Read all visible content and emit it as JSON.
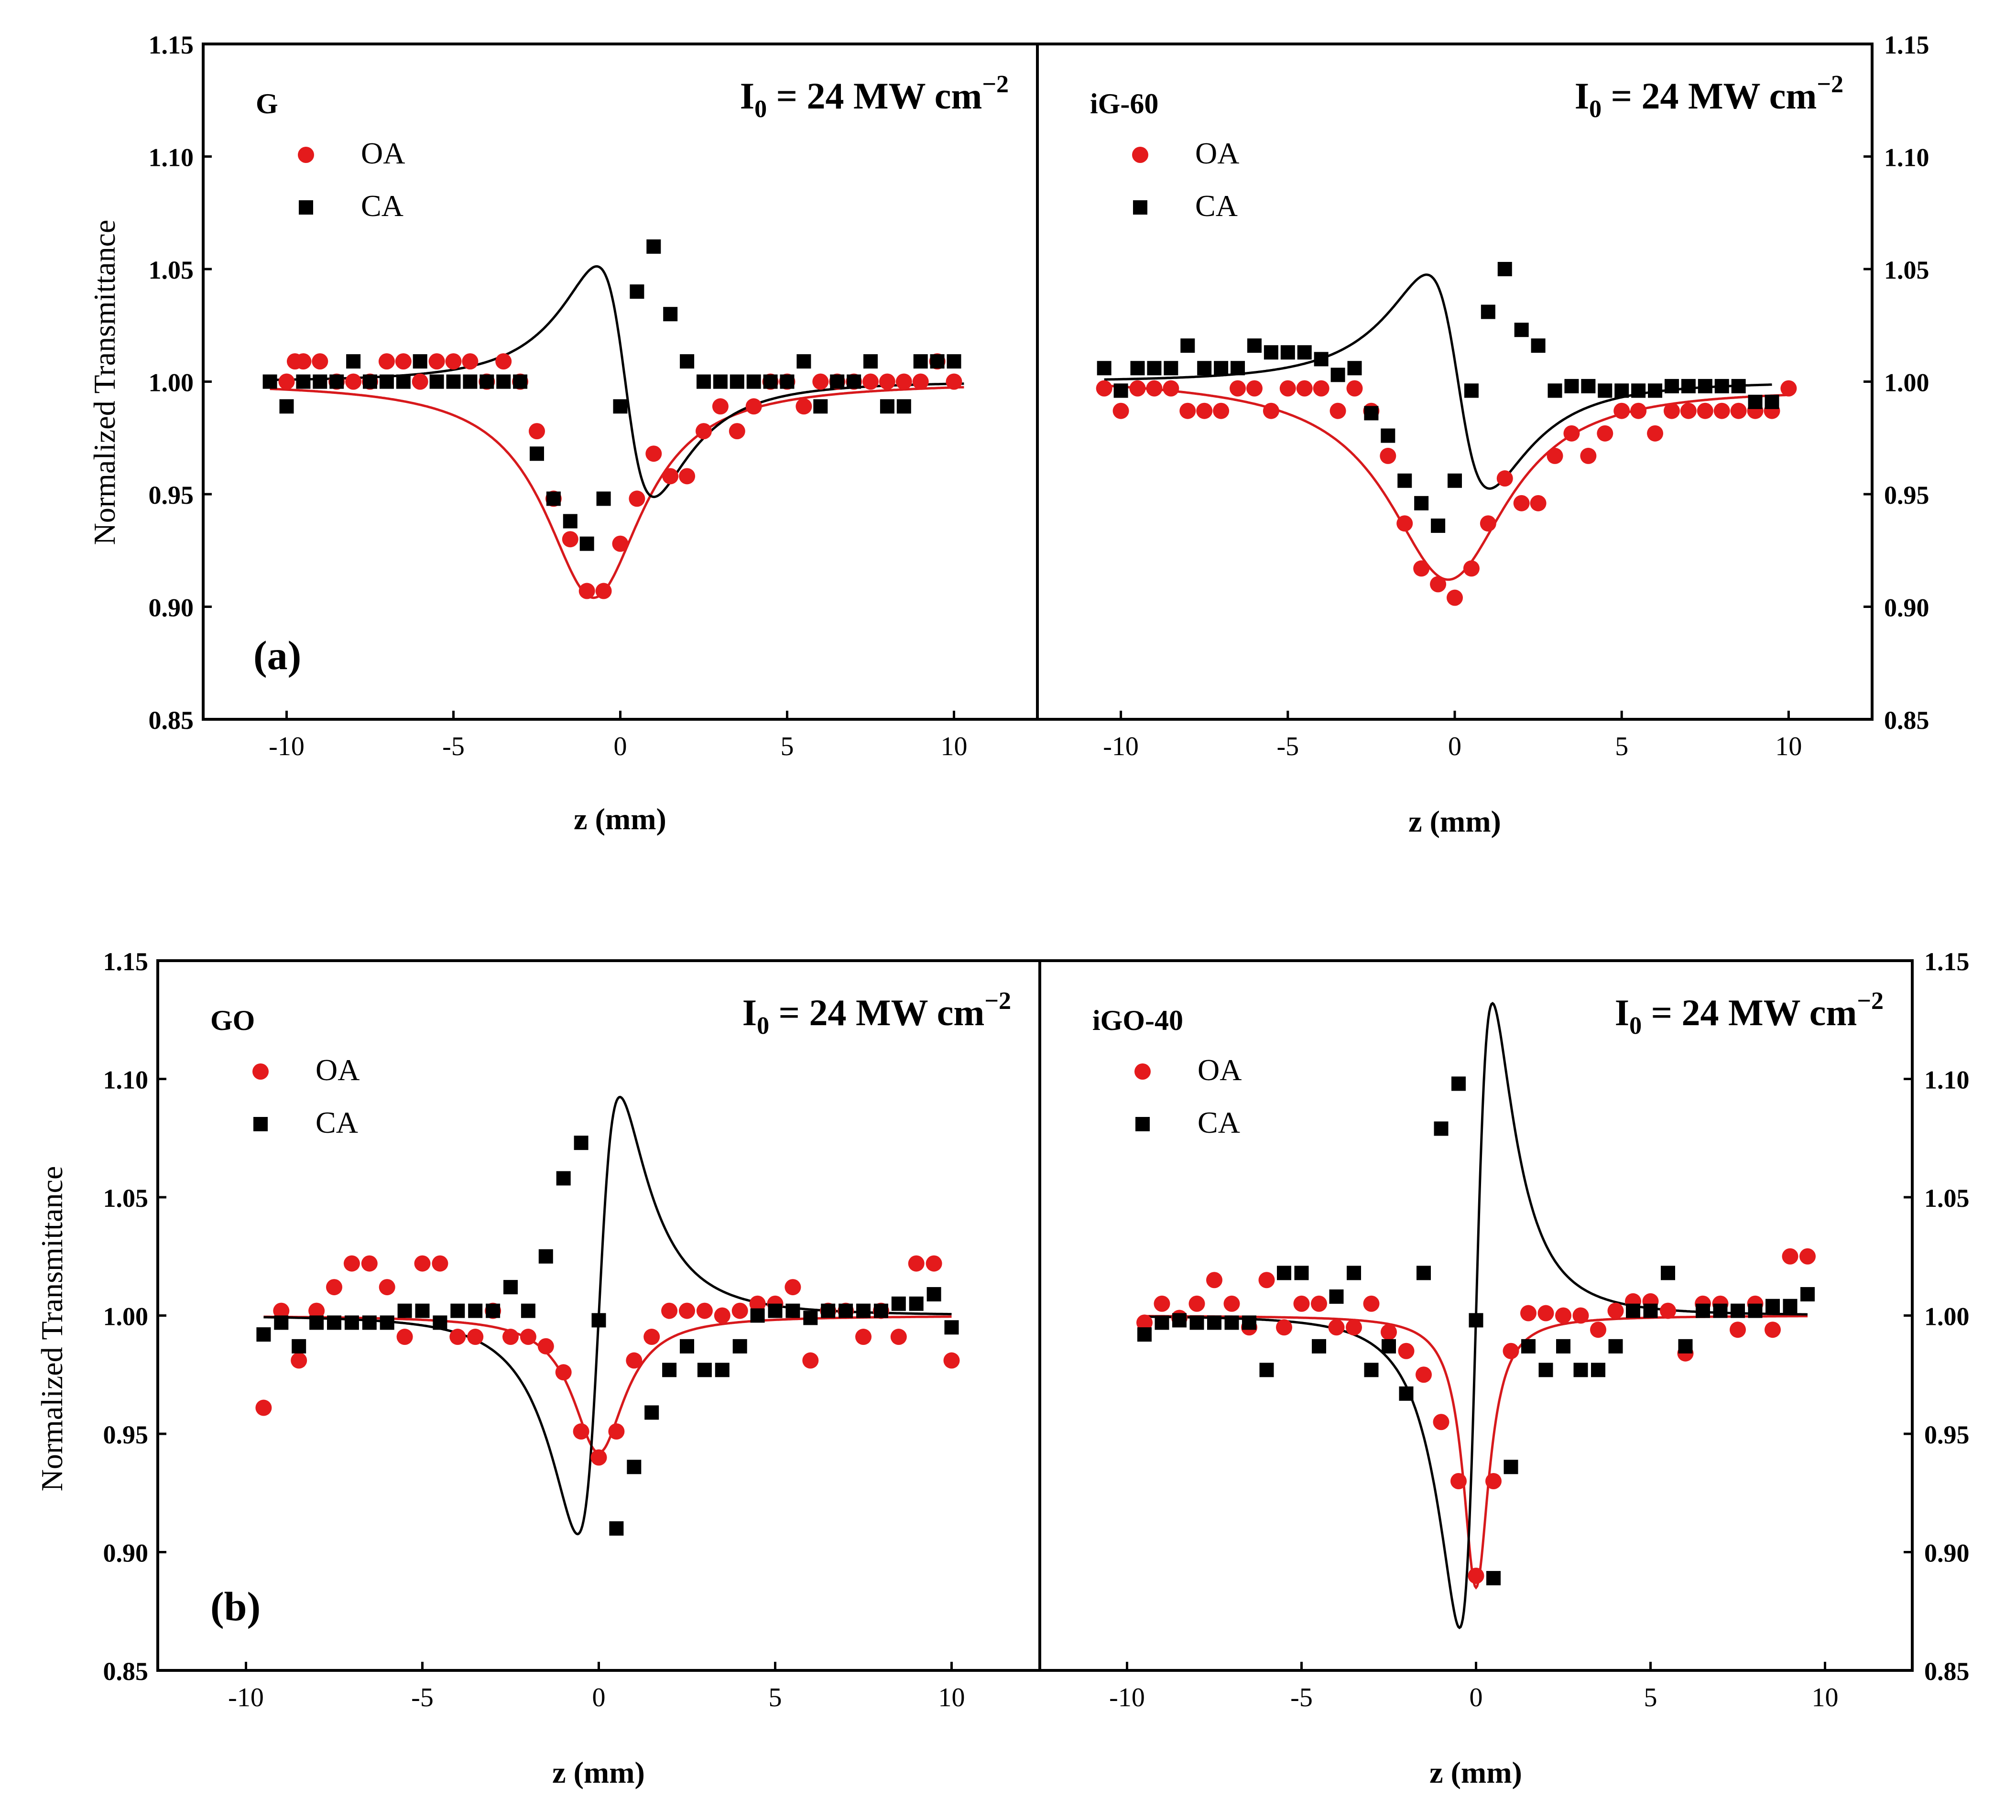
{
  "figure": {
    "rows": [
      {
        "row_label": "(a)",
        "xlabel": "z (mm)",
        "ylabel": "Normalized Transmittance"
      },
      {
        "row_label": "(b)",
        "xlabel": "z (mm)",
        "ylabel": "Normalized Transmittance"
      }
    ]
  },
  "colors": {
    "oa": "#e41a1c",
    "ca": "#000000",
    "fit_oa": "#d7191c",
    "fit_ca": "#000000"
  },
  "chart_data": [
    {
      "type": "scatter",
      "panel": "G",
      "row": 0,
      "col": 0,
      "intensity": {
        "base": "I",
        "sub": "0",
        "rest": " = 24 MW cm",
        "sup": "−2"
      },
      "xlabel": "z (mm)",
      "ylabel": "Normalized Transmittance",
      "xlim": [
        -12.5,
        12.5
      ],
      "ylim": [
        0.85,
        1.15
      ],
      "xticks": [
        -10,
        -5,
        0,
        5,
        10
      ],
      "xtick_labels": [
        "-10",
        "-5",
        "0",
        "5",
        "10"
      ],
      "yticks": [
        0.85,
        0.9,
        0.95,
        1.0,
        1.05,
        1.1,
        1.15
      ],
      "ytick_labels": [
        "0.85",
        "0.90",
        "0.95",
        "1.00",
        "1.05",
        "1.10",
        "1.15"
      ],
      "legend": [
        "OA",
        "CA"
      ],
      "series": [
        {
          "name": "OA",
          "marker": "circle",
          "x": [
            -10,
            -9.75,
            -9.5,
            -9,
            -8.5,
            -8,
            -7.5,
            -7,
            -6.5,
            -6,
            -5.5,
            -5,
            -4.5,
            -4,
            -3.5,
            -3,
            -2.5,
            -2,
            -1.5,
            -1,
            -0.5,
            0,
            0.5,
            1,
            1.5,
            2,
            2.5,
            3,
            3.5,
            4,
            4.5,
            5,
            5.5,
            6,
            6.5,
            7,
            7.5,
            8,
            8.5,
            9,
            9.5,
            10
          ],
          "y": [
            1.0,
            1.009,
            1.009,
            1.009,
            1.0,
            1.0,
            1.0,
            1.009,
            1.009,
            1.0,
            1.009,
            1.009,
            1.009,
            1.0,
            1.009,
            1.0,
            0.978,
            0.948,
            0.93,
            0.907,
            0.907,
            0.928,
            0.948,
            0.968,
            0.958,
            0.958,
            0.978,
            0.989,
            0.978,
            0.989,
            1.0,
            1.0,
            0.989,
            1.0,
            1.0,
            1.0,
            1.0,
            1.0,
            1.0,
            1.0,
            1.009,
            1.0
          ]
        },
        {
          "name": "CA",
          "marker": "square",
          "x": [
            -10.5,
            -10,
            -9.5,
            -9,
            -8.5,
            -8,
            -7.5,
            -7,
            -6.5,
            -6,
            -5.5,
            -5,
            -4.5,
            -4,
            -3.5,
            -3,
            -2.5,
            -2,
            -1.5,
            -1,
            -0.5,
            0,
            0.5,
            1,
            1.5,
            2,
            2.5,
            3,
            3.5,
            4,
            4.5,
            5,
            5.5,
            6,
            6.5,
            7,
            7.5,
            8,
            8.5,
            9,
            9.5,
            10
          ],
          "y": [
            1.0,
            0.989,
            1.0,
            1.0,
            1.0,
            1.009,
            1.0,
            1.0,
            1.0,
            1.009,
            1.0,
            1.0,
            1.0,
            1.0,
            1.0,
            1.0,
            0.968,
            0.948,
            0.938,
            0.928,
            0.948,
            0.989,
            1.04,
            1.06,
            1.03,
            1.009,
            1.0,
            1.0,
            1.0,
            1.0,
            1.0,
            1.0,
            1.009,
            0.989,
            1.0,
            1.0,
            1.009,
            0.989,
            0.989,
            1.009,
            1.009,
            1.009
          ]
        }
      ],
      "fits": [
        {
          "name": "OA fit",
          "kind": "oa",
          "x0": -0.8,
          "depth": 0.096,
          "z0": 1.8,
          "xrange": [
            -10.5,
            10.3
          ]
        },
        {
          "name": "CA fit",
          "kind": "ca",
          "x0": 0.15,
          "amp": 0.097,
          "z0": 1.0,
          "offset": 0.0,
          "xrange": [
            -10.5,
            10.3
          ]
        }
      ]
    },
    {
      "type": "scatter",
      "panel": "iG-60",
      "row": 0,
      "col": 1,
      "intensity": {
        "base": "I",
        "sub": "0",
        "rest": " = 24 MW cm",
        "sup": "−2"
      },
      "xlabel": "z (mm)",
      "ylabel": "Normalized Transmittance",
      "xlim": [
        -12.5,
        12.5
      ],
      "ylim": [
        0.85,
        1.15
      ],
      "xticks": [
        -10,
        -5,
        0,
        5,
        10
      ],
      "xtick_labels": [
        "-10",
        "-5",
        "0",
        "5",
        "10"
      ],
      "yticks": [
        0.85,
        0.9,
        0.95,
        1.0,
        1.05,
        1.1,
        1.15
      ],
      "ytick_labels": [
        "0.85",
        "0.90",
        "0.95",
        "1.00",
        "1.05",
        "1.10",
        "1.15"
      ],
      "legend": [
        "OA",
        "CA"
      ],
      "series": [
        {
          "name": "OA",
          "marker": "circle",
          "x": [
            -10.5,
            -10,
            -9.5,
            -9,
            -8.5,
            -8,
            -7.5,
            -7,
            -6.5,
            -6,
            -5.5,
            -5,
            -4.5,
            -4,
            -3.5,
            -3,
            -2.5,
            -2,
            -1.5,
            -1,
            -0.5,
            0,
            0.5,
            1,
            1.5,
            2,
            2.5,
            3,
            3.5,
            4,
            4.5,
            5,
            5.5,
            6,
            6.5,
            7,
            7.5,
            8,
            8.5,
            9,
            9.5,
            10
          ],
          "y": [
            0.997,
            0.987,
            0.997,
            0.997,
            0.997,
            0.987,
            0.987,
            0.987,
            0.997,
            0.997,
            0.987,
            0.997,
            0.997,
            0.997,
            0.987,
            0.997,
            0.987,
            0.967,
            0.937,
            0.917,
            0.91,
            0.904,
            0.917,
            0.937,
            0.957,
            0.946,
            0.946,
            0.967,
            0.977,
            0.967,
            0.977,
            0.987,
            0.987,
            0.977,
            0.987,
            0.987,
            0.987,
            0.987,
            0.987,
            0.987,
            0.987,
            0.997
          ]
        },
        {
          "name": "CA",
          "marker": "square",
          "x": [
            -10.5,
            -10,
            -9.5,
            -9,
            -8.5,
            -8,
            -7.5,
            -7,
            -6.5,
            -6,
            -5.5,
            -5,
            -4.5,
            -4,
            -3.5,
            -3,
            -2.5,
            -2,
            -1.5,
            -1,
            -0.5,
            0,
            0.5,
            1,
            1.5,
            2,
            2.5,
            3,
            3.5,
            4,
            4.5,
            5,
            5.5,
            6,
            6.5,
            7,
            7.5,
            8,
            8.5,
            9,
            9.5
          ],
          "y": [
            1.006,
            0.996,
            1.006,
            1.006,
            1.006,
            1.016,
            1.006,
            1.006,
            1.006,
            1.016,
            1.013,
            1.013,
            1.013,
            1.01,
            1.003,
            1.006,
            0.986,
            0.976,
            0.956,
            0.946,
            0.936,
            0.956,
            0.996,
            1.031,
            1.05,
            1.023,
            1.016,
            0.996,
            0.998,
            0.998,
            0.996,
            0.996,
            0.996,
            0.996,
            0.998,
            0.998,
            0.998,
            0.998,
            0.998,
            0.991,
            0.991
          ]
        }
      ],
      "fits": [
        {
          "name": "OA fit",
          "kind": "oa",
          "x0": -0.2,
          "depth": 0.088,
          "z0": 2.2,
          "xrange": [
            -10.5,
            10.0
          ],
          "tilt": -0.0002
        },
        {
          "name": "CA fit",
          "kind": "ca",
          "x0": 0.1,
          "amp": 0.09,
          "z0": 1.1,
          "offset": 0.0,
          "xrange": [
            -10.5,
            9.5
          ]
        }
      ]
    },
    {
      "type": "scatter",
      "panel": "GO",
      "row": 1,
      "col": 0,
      "intensity": {
        "base": "I",
        "sub": "0",
        "rest": " = 24 MW cm",
        "sup": "−2"
      },
      "xlabel": "z (mm)",
      "ylabel": "Normalized Transmittance",
      "xlim": [
        -12.5,
        12.5
      ],
      "ylim": [
        0.85,
        1.15
      ],
      "xticks": [
        -10,
        -5,
        0,
        5,
        10
      ],
      "xtick_labels": [
        "-10",
        "-5",
        "0",
        "5",
        "10"
      ],
      "yticks": [
        0.85,
        0.9,
        0.95,
        1.0,
        1.05,
        1.1,
        1.15
      ],
      "ytick_labels": [
        "0.85",
        "0.90",
        "0.95",
        "1.00",
        "1.05",
        "1.10",
        "1.15"
      ],
      "legend": [
        "OA",
        "CA"
      ],
      "series": [
        {
          "name": "OA",
          "marker": "circle",
          "x": [
            -9.5,
            -9,
            -8.5,
            -8,
            -7.5,
            -7,
            -6.5,
            -6,
            -5.5,
            -5,
            -4.5,
            -4,
            -3.5,
            -3,
            -2.5,
            -2,
            -1.5,
            -1,
            -0.5,
            0,
            0.5,
            1,
            1.5,
            2,
            2.5,
            3,
            3.5,
            4,
            4.5,
            5,
            5.5,
            6,
            6.5,
            7,
            7.5,
            8,
            8.5,
            9,
            9.5,
            10
          ],
          "y": [
            0.961,
            1.002,
            0.981,
            1.002,
            1.012,
            1.022,
            1.022,
            1.012,
            0.991,
            1.022,
            1.022,
            0.991,
            0.991,
            1.002,
            0.991,
            0.991,
            0.987,
            0.976,
            0.951,
            0.94,
            0.951,
            0.981,
            0.991,
            1.002,
            1.002,
            1.002,
            1.0,
            1.002,
            1.005,
            1.005,
            1.012,
            0.981,
            1.002,
            1.002,
            0.991,
            1.002,
            0.991,
            1.022,
            1.022,
            0.981
          ]
        },
        {
          "name": "CA",
          "marker": "square",
          "x": [
            -9.5,
            -9,
            -8.5,
            -8,
            -7.5,
            -7,
            -6.5,
            -6,
            -5.5,
            -5,
            -4.5,
            -4,
            -3.5,
            -3,
            -2.5,
            -2,
            -1.5,
            -1,
            -0.5,
            0,
            0.5,
            1,
            1.5,
            2,
            2.5,
            3,
            3.5,
            4,
            4.5,
            5,
            5.5,
            6,
            6.5,
            7,
            7.5,
            8,
            8.5,
            9,
            9.5,
            10
          ],
          "y": [
            0.992,
            0.997,
            0.987,
            0.997,
            0.997,
            0.997,
            0.997,
            0.997,
            1.002,
            1.002,
            0.997,
            1.002,
            1.002,
            1.002,
            1.012,
            1.002,
            1.025,
            1.058,
            1.073,
            0.998,
            0.91,
            0.936,
            0.959,
            0.977,
            0.987,
            0.977,
            0.977,
            0.987,
            1.0,
            1.002,
            1.002,
            0.999,
            1.002,
            1.002,
            1.002,
            1.002,
            1.005,
            1.005,
            1.009,
            0.995
          ]
        }
      ],
      "fits": [
        {
          "name": "OA fit",
          "kind": "oa",
          "x0": 0.0,
          "depth": 0.058,
          "z0": 0.9,
          "xrange": [
            -9.5,
            10.0
          ]
        },
        {
          "name": "CA fit",
          "kind": "ca",
          "x0": 0.0,
          "amp": -0.175,
          "z0": 0.7,
          "offset": 0.0,
          "xrange": [
            -9.5,
            10.0
          ]
        }
      ]
    },
    {
      "type": "scatter",
      "panel": "iGO-40",
      "row": 1,
      "col": 1,
      "intensity": {
        "base": "I",
        "sub": "0",
        "rest": " = 24 MW cm",
        "sup": "−2"
      },
      "xlabel": "z (mm)",
      "ylabel": "Normalized Transmittance",
      "xlim": [
        -12.5,
        12.5
      ],
      "ylim": [
        0.85,
        1.15
      ],
      "xticks": [
        -10,
        -5,
        0,
        5,
        10
      ],
      "xtick_labels": [
        "-10",
        "-5",
        "0",
        "5",
        "10"
      ],
      "yticks": [
        0.85,
        0.9,
        0.95,
        1.0,
        1.05,
        1.1,
        1.15
      ],
      "ytick_labels": [
        "0.85",
        "0.90",
        "0.95",
        "1.00",
        "1.05",
        "1.10",
        "1.15"
      ],
      "legend": [
        "OA",
        "CA"
      ],
      "series": [
        {
          "name": "OA",
          "marker": "circle",
          "x": [
            -9.5,
            -9,
            -8.5,
            -8,
            -7.5,
            -7,
            -6.5,
            -6,
            -5.5,
            -5,
            -4.5,
            -4,
            -3.5,
            -3,
            -2.5,
            -2,
            -1.5,
            -1,
            -0.5,
            0,
            0.5,
            1,
            1.5,
            2,
            2.5,
            3,
            3.5,
            4,
            4.5,
            5,
            5.5,
            6,
            6.5,
            7,
            7.5,
            8,
            8.5,
            9,
            9.5
          ],
          "y": [
            0.997,
            1.005,
            0.999,
            1.005,
            1.015,
            1.005,
            0.995,
            1.015,
            0.995,
            1.005,
            1.005,
            0.995,
            0.995,
            1.005,
            0.993,
            0.985,
            0.975,
            0.955,
            0.93,
            0.89,
            0.93,
            0.985,
            1.001,
            1.001,
            1.0,
            1.0,
            0.994,
            1.002,
            1.006,
            1.006,
            1.002,
            0.984,
            1.005,
            1.005,
            0.994,
            1.005,
            0.994,
            1.025,
            1.025
          ]
        },
        {
          "name": "CA",
          "marker": "square",
          "x": [
            -9.5,
            -9,
            -8.5,
            -8,
            -7.5,
            -7,
            -6.5,
            -6,
            -5.5,
            -5,
            -4.5,
            -4,
            -3.5,
            -3,
            -2.5,
            -2,
            -1.5,
            -1,
            -0.5,
            0,
            0.5,
            1,
            1.5,
            2,
            2.5,
            3,
            3.5,
            4,
            4.5,
            5,
            5.5,
            6,
            6.5,
            7,
            7.5,
            8,
            8.5,
            9,
            9.5
          ],
          "y": [
            0.992,
            0.997,
            0.998,
            0.997,
            0.997,
            0.997,
            0.997,
            0.977,
            1.018,
            1.018,
            0.987,
            1.008,
            1.018,
            0.977,
            0.987,
            0.967,
            1.018,
            1.079,
            1.098,
            0.998,
            0.889,
            0.936,
            0.987,
            0.977,
            0.987,
            0.977,
            0.977,
            0.987,
            1.002,
            1.002,
            1.018,
            0.987,
            1.002,
            1.002,
            1.002,
            1.002,
            1.004,
            1.004,
            1.009
          ]
        }
      ],
      "fits": [
        {
          "name": "OA fit",
          "kind": "oa",
          "x0": 0.0,
          "depth": 0.115,
          "z0": 0.45,
          "xrange": [
            -9.5,
            9.5
          ]
        },
        {
          "name": "CA fit",
          "kind": "ca",
          "x0": 0.0,
          "amp": -0.25,
          "z0": 0.55,
          "offset": 0.0,
          "xrange": [
            -9.5,
            9.5
          ]
        }
      ]
    }
  ]
}
